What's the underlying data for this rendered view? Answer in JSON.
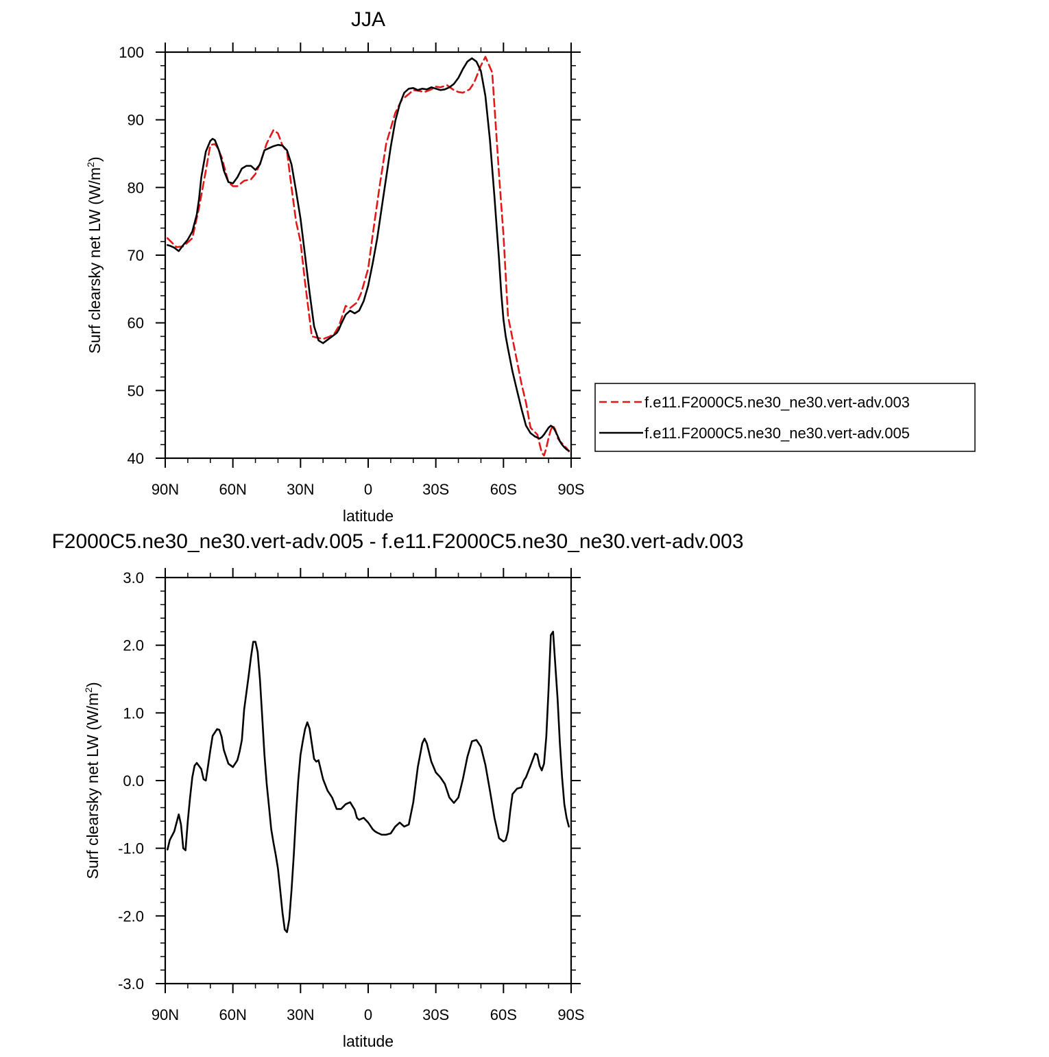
{
  "chart_data": [
    {
      "type": "line",
      "title": "JJA",
      "xlabel": "latitude",
      "ylabel_main": "Surf clearsky net LW (W/m",
      "ylabel_sup": "2",
      "ylabel_tail": ")",
      "xlim": [
        90,
        -90
      ],
      "ylim": [
        40,
        100
      ],
      "x_ticks": [
        90,
        60,
        30,
        0,
        -30,
        -60,
        -90
      ],
      "x_tick_labels": [
        "90N",
        "60N",
        "30N",
        "0",
        "30S",
        "60S",
        "90S"
      ],
      "y_ticks": [
        40,
        50,
        60,
        70,
        80,
        90,
        100
      ],
      "y_tick_labels": [
        "40",
        "50",
        "60",
        "70",
        "80",
        "90",
        "100"
      ],
      "legend": "right",
      "grid": false,
      "series": [
        {
          "name": "f.e11.F2000C5.ne30_ne30.vert-adv.003",
          "color": "#e01818",
          "style": "dashed",
          "x": [
            89,
            85,
            82,
            78,
            75,
            72,
            70,
            68,
            67,
            65,
            62,
            60,
            58,
            55,
            52,
            50,
            48,
            45,
            42,
            40,
            38,
            36,
            34,
            32,
            30,
            28,
            25,
            20,
            17,
            15,
            13,
            12,
            10,
            8,
            5,
            3,
            0,
            -2,
            -5,
            -8,
            -12,
            -15,
            -18,
            -20,
            -22,
            -25,
            -28,
            -30,
            -32,
            -35,
            -38,
            -40,
            -42,
            -45,
            -47,
            -50,
            -52,
            -55,
            -58,
            -60,
            -62,
            -65,
            -68,
            -70,
            -72,
            -75,
            -77,
            -78,
            -79,
            -80,
            -81,
            -82,
            -83,
            -84,
            -85,
            -86,
            -87,
            -88,
            -89
          ],
          "y": [
            72.5,
            71.2,
            71.3,
            72.5,
            77,
            82.5,
            86.3,
            86.4,
            86.0,
            84.5,
            80.8,
            80.2,
            80.2,
            81.0,
            81.2,
            82.0,
            83.5,
            86.5,
            88.5,
            88.0,
            86.2,
            85.3,
            80,
            75,
            72,
            66,
            58.0,
            57.6,
            58.0,
            58.4,
            59.5,
            60.5,
            62.5,
            62.2,
            63.0,
            64.5,
            68,
            73,
            80,
            86.5,
            91.0,
            93.0,
            93.8,
            94.4,
            94.3,
            94.1,
            94.5,
            94.9,
            94.8,
            95.1,
            94.4,
            94.1,
            94.0,
            94.5,
            95.5,
            98.0,
            99.3,
            97,
            82,
            73,
            61,
            56,
            51,
            48.2,
            44.5,
            43.5,
            40.8,
            40.4,
            41.5,
            43.0,
            44.2,
            44.8,
            44.2,
            43.0,
            42.5,
            42.2,
            41.8,
            41.5,
            41.0
          ]
        },
        {
          "name": "f.e11.F2000C5.ne30_ne30.vert-adv.005",
          "color": "#000000",
          "style": "solid",
          "x": [
            89,
            88,
            86,
            84,
            82,
            80,
            78,
            76,
            75,
            74,
            72,
            70,
            69,
            68,
            67,
            66,
            65,
            64,
            62,
            60,
            58,
            56,
            54,
            52,
            50,
            48,
            46,
            44,
            42,
            40,
            38,
            36,
            34,
            32,
            30,
            28,
            26,
            25,
            24,
            22,
            20,
            18,
            16,
            14,
            13,
            12,
            10,
            8,
            6,
            4,
            2,
            0,
            -2,
            -4,
            -6,
            -8,
            -10,
            -12,
            -14,
            -16,
            -18,
            -20,
            -22,
            -24,
            -26,
            -28,
            -30,
            -32,
            -34,
            -36,
            -38,
            -40,
            -42,
            -44,
            -46,
            -48,
            -50,
            -52,
            -54,
            -56,
            -57,
            -58,
            -59,
            -60,
            -61,
            -62,
            -64,
            -66,
            -68,
            -70,
            -72,
            -74,
            -76,
            -77,
            -78,
            -79,
            -80,
            -81,
            -82,
            -83,
            -84,
            -85,
            -86,
            -87,
            -88,
            -89
          ],
          "y": [
            71.5,
            71.4,
            71.1,
            70.6,
            71.5,
            72.3,
            73.5,
            76,
            78.3,
            81.5,
            85.3,
            86.9,
            87.2,
            87.0,
            86.2,
            85.3,
            84.0,
            82.5,
            80.8,
            80.6,
            81.5,
            82.8,
            83.2,
            83.2,
            82.6,
            83.4,
            85.5,
            85.8,
            86.1,
            86.3,
            86.2,
            85.5,
            83.4,
            79.5,
            75.4,
            70.0,
            64.5,
            62.0,
            59.5,
            57.4,
            57.0,
            57.5,
            58.0,
            58.5,
            59.0,
            59.8,
            61.2,
            61.8,
            61.4,
            61.8,
            63.2,
            65.5,
            68.8,
            72.5,
            77.0,
            81.5,
            86.0,
            89.8,
            92.3,
            94.0,
            94.6,
            94.7,
            94.4,
            94.6,
            94.5,
            94.8,
            94.6,
            94.4,
            94.5,
            94.8,
            95.3,
            96.2,
            97.5,
            98.6,
            99.1,
            98.6,
            97.2,
            93.5,
            87.0,
            78.6,
            74.0,
            69.5,
            64.5,
            60.5,
            58.0,
            56.2,
            52.8,
            50.0,
            47.3,
            44.8,
            43.7,
            43.2,
            42.9,
            43.1,
            43.5,
            44.0,
            44.5,
            44.8,
            44.6,
            44.0,
            43.3,
            42.5,
            42.0,
            41.6,
            41.3,
            41.1
          ]
        }
      ]
    },
    {
      "type": "line",
      "title": "F2000C5.ne30_ne30.vert-adv.005 - f.e11.F2000C5.ne30_ne30.vert-adv.003",
      "xlabel": "latitude",
      "ylabel_main": "Surf clearsky net LW (W/m",
      "ylabel_sup": "2",
      "ylabel_tail": ")",
      "xlim": [
        90,
        -90
      ],
      "ylim": [
        -3.0,
        3.0
      ],
      "x_ticks": [
        90,
        60,
        30,
        0,
        -30,
        -60,
        -90
      ],
      "x_tick_labels": [
        "90N",
        "60N",
        "30N",
        "0",
        "30S",
        "60S",
        "90S"
      ],
      "y_ticks": [
        -3,
        -2,
        -1,
        0,
        1,
        2,
        3
      ],
      "y_tick_labels": [
        "-3.0",
        "-2.0",
        "-1.0",
        "0.0",
        "1.0",
        "2.0",
        "3.0"
      ],
      "grid": false,
      "series": [
        {
          "name": "",
          "color": "#000000",
          "style": "solid",
          "x": [
            89,
            88,
            86,
            84,
            83,
            82,
            81,
            80,
            79,
            78,
            77,
            76,
            74,
            73,
            72,
            71,
            70,
            69,
            67,
            66,
            65,
            64,
            62,
            60,
            58,
            57,
            56,
            55,
            54,
            53,
            52,
            51,
            50,
            49,
            48,
            47,
            46,
            45,
            44,
            43,
            42,
            41,
            40,
            39,
            38,
            37,
            36,
            35,
            34,
            33,
            32,
            31,
            30,
            29,
            28,
            27,
            26,
            24,
            23,
            22,
            20,
            18,
            16,
            14,
            12,
            10,
            8,
            6,
            5,
            4,
            2,
            0,
            -2,
            -3,
            -4,
            -6,
            -8,
            -10,
            -12,
            -14,
            -16,
            -18,
            -20,
            -22,
            -24,
            -25,
            -26,
            -28,
            -30,
            -32,
            -34,
            -36,
            -38,
            -40,
            -42,
            -44,
            -46,
            -48,
            -50,
            -52,
            -54,
            -56,
            -58,
            -60,
            -61,
            -62,
            -63,
            -64,
            -66,
            -68,
            -69,
            -70,
            -72,
            -74,
            -75,
            -76,
            -77,
            -78,
            -79,
            -80,
            -81,
            -82,
            -83,
            -84,
            -85,
            -86,
            -87,
            -88,
            -89
          ],
          "y": [
            -1.02,
            -0.88,
            -0.75,
            -0.5,
            -0.65,
            -1.0,
            -1.03,
            -0.6,
            -0.25,
            0.05,
            0.22,
            0.26,
            0.17,
            0.02,
            0.0,
            0.22,
            0.45,
            0.66,
            0.76,
            0.75,
            0.65,
            0.45,
            0.25,
            0.2,
            0.3,
            0.43,
            0.6,
            1.05,
            1.3,
            1.55,
            1.82,
            2.05,
            2.05,
            1.9,
            1.5,
            0.95,
            0.38,
            -0.05,
            -0.38,
            -0.72,
            -0.92,
            -1.1,
            -1.3,
            -1.62,
            -1.95,
            -2.2,
            -2.24,
            -2.05,
            -1.62,
            -1.1,
            -0.5,
            0.0,
            0.38,
            0.58,
            0.76,
            0.86,
            0.77,
            0.32,
            0.28,
            0.3,
            0.02,
            -0.15,
            -0.25,
            -0.42,
            -0.42,
            -0.35,
            -0.32,
            -0.43,
            -0.55,
            -0.58,
            -0.55,
            -0.62,
            -0.72,
            -0.75,
            -0.77,
            -0.8,
            -0.8,
            -0.78,
            -0.68,
            -0.62,
            -0.68,
            -0.65,
            -0.32,
            0.2,
            0.55,
            0.62,
            0.55,
            0.28,
            0.12,
            0.05,
            -0.05,
            -0.25,
            -0.33,
            -0.25,
            0.02,
            0.35,
            0.58,
            0.6,
            0.5,
            0.23,
            -0.15,
            -0.55,
            -0.85,
            -0.9,
            -0.88,
            -0.75,
            -0.45,
            -0.2,
            -0.12,
            -0.1,
            0.0,
            0.05,
            0.22,
            0.4,
            0.38,
            0.22,
            0.15,
            0.25,
            0.65,
            1.35,
            2.15,
            2.2,
            1.7,
            1.2,
            0.55,
            0.05,
            -0.35,
            -0.55,
            -0.68
          ]
        }
      ]
    }
  ]
}
